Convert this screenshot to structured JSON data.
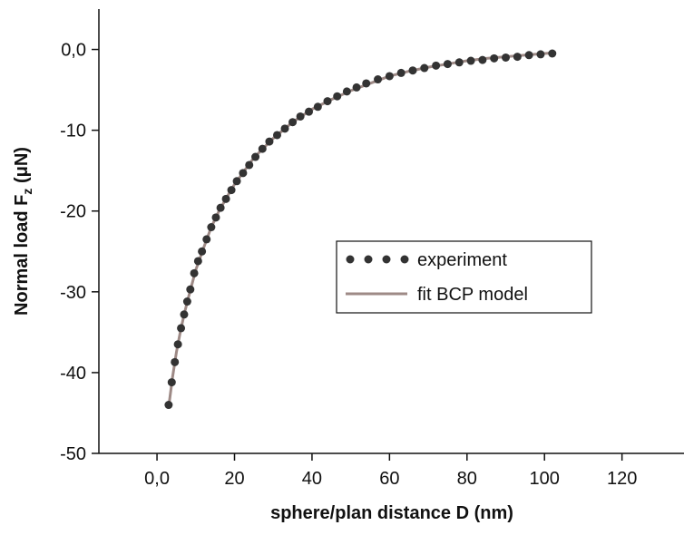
{
  "chart_data": {
    "type": "scatter-line",
    "xlabel": "sphere/plan distance D (nm)",
    "ylabel": "Normal load F",
    "ylabel_sub": "z",
    "ylabel_unit": " (μN)",
    "xlim": [
      -15,
      136
    ],
    "ylim": [
      -50,
      5
    ],
    "xticks": [
      {
        "value": 0,
        "label": "0,0"
      },
      20,
      40,
      60,
      80,
      100,
      120
    ],
    "yticks": [
      {
        "value": 0,
        "label": "0,0"
      },
      -10,
      -20,
      -30,
      -40,
      -50
    ],
    "legend": "center-right",
    "series": [
      {
        "name": "experiment",
        "color": "#333333",
        "style": "markers",
        "x": [
          3,
          3.8,
          4.6,
          5.4,
          6.2,
          7,
          7.8,
          8.6,
          9.6,
          10.6,
          11.6,
          12.8,
          14,
          15.2,
          16.4,
          17.8,
          19.2,
          20.6,
          22.2,
          23.8,
          25.4,
          27.2,
          29,
          31,
          33,
          35,
          37,
          39.2,
          41.5,
          44,
          46.5,
          49,
          51.5,
          54,
          57,
          60,
          63,
          66,
          69,
          72,
          75,
          78,
          81,
          84,
          87,
          90,
          93,
          96,
          99,
          102
        ],
        "values": [
          -44,
          -41.2,
          -38.7,
          -36.5,
          -34.5,
          -32.8,
          -31.2,
          -29.7,
          -27.7,
          -26.2,
          -25,
          -23.5,
          -22,
          -20.8,
          -19.6,
          -18.5,
          -17.4,
          -16.3,
          -15.3,
          -14.3,
          -13.3,
          -12.3,
          -11.4,
          -10.6,
          -9.8,
          -9,
          -8.3,
          -7.7,
          -7.1,
          -6.4,
          -5.8,
          -5.2,
          -4.7,
          -4.2,
          -3.7,
          -3.3,
          -2.9,
          -2.6,
          -2.3,
          -2,
          -1.8,
          -1.6,
          -1.4,
          -1.3,
          -1.1,
          -1,
          -0.9,
          -0.7,
          -0.6,
          -0.5
        ]
      },
      {
        "name": "fit BCP model",
        "color": "#9e8a86",
        "style": "line",
        "x": [
          3,
          4,
          5,
          6,
          7,
          8,
          10,
          12,
          14,
          16,
          18,
          20,
          25,
          30,
          35,
          40,
          45,
          50,
          55,
          60,
          65,
          70,
          75,
          80,
          85,
          90,
          95,
          100,
          103
        ],
        "values": [
          -44.3,
          -40.6,
          -37.5,
          -35,
          -32.8,
          -30.9,
          -27.3,
          -24.6,
          -22,
          -20,
          -18.3,
          -16.7,
          -13.4,
          -11,
          -9,
          -7.4,
          -6.2,
          -5.1,
          -4.2,
          -3.3,
          -2.7,
          -2.2,
          -1.8,
          -1.4,
          -1.1,
          -0.9,
          -0.7,
          -0.5,
          -0.4
        ]
      }
    ]
  }
}
